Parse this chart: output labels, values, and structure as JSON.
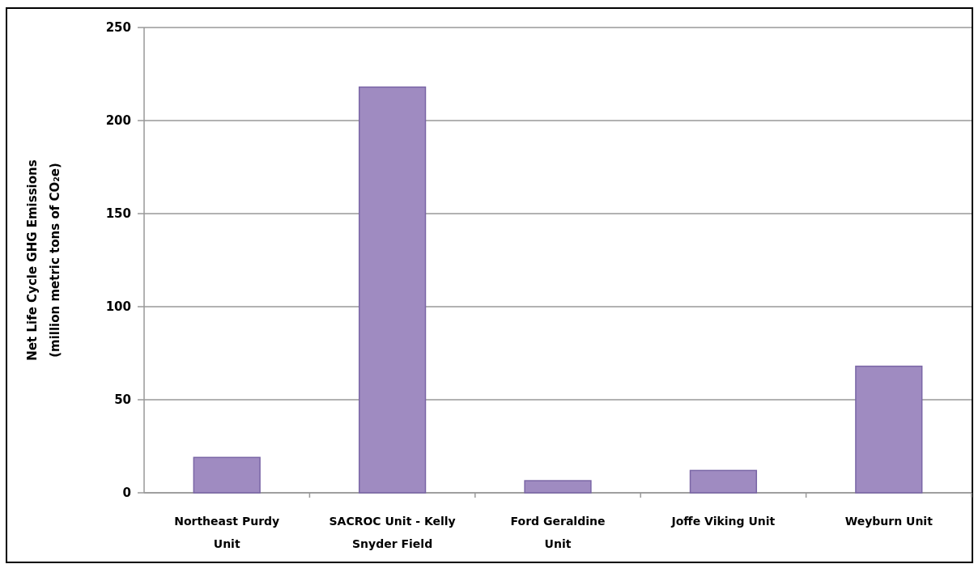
{
  "chart_data": {
    "type": "bar",
    "ylabel": "Net Life Cycle GHG Emissions\n(million metric tons of CO₂e)",
    "categories": [
      "Northeast Purdy\nUnit",
      "SACROC Unit - Kelly\nSnyder Field",
      "Ford Geraldine\nUnit",
      "Joffe Viking Unit",
      "Weyburn Unit"
    ],
    "values": [
      19,
      218,
      6.5,
      12,
      68
    ],
    "color": "#9f8bc1",
    "ylim": [
      0,
      250
    ],
    "yticks": [
      0,
      50,
      100,
      150,
      200,
      250
    ],
    "grid": "y"
  }
}
